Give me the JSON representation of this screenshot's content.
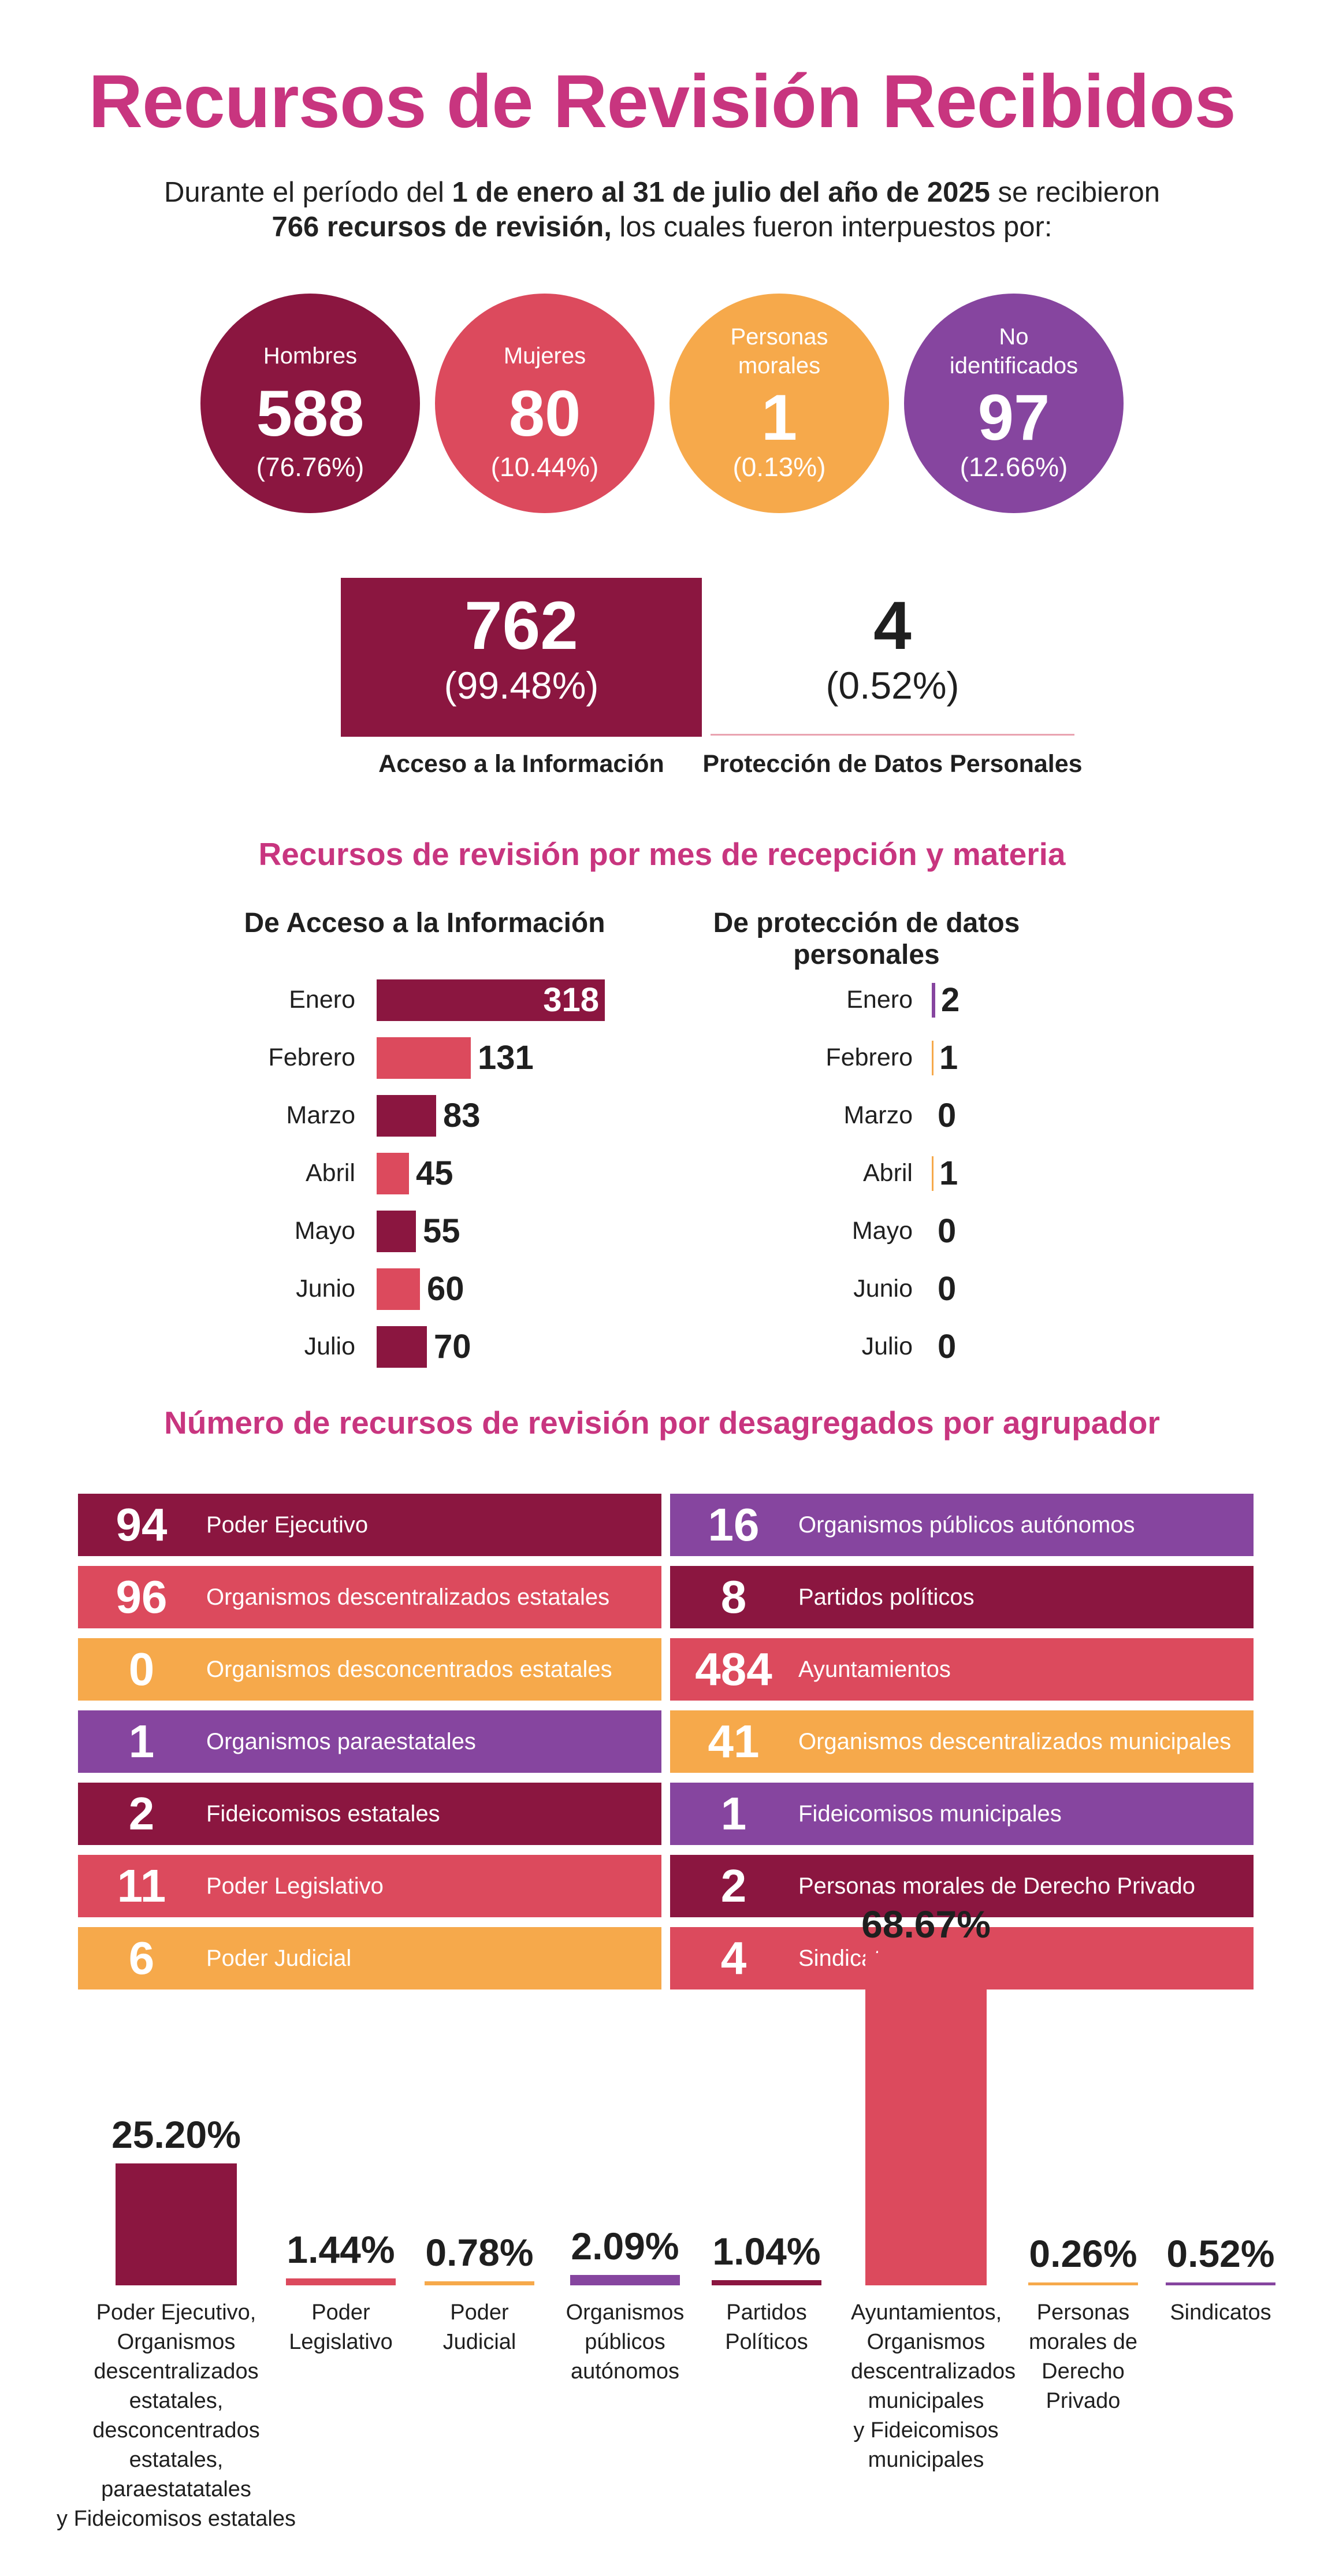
{
  "title": "Recursos de Revisión Recibidos",
  "intro": {
    "l1_a": "Durante el período del ",
    "l1_b": "1 de enero al 31 de julio del año de 2025",
    "l1_c": " se recibieron",
    "l2_a": "766 recursos de revisión,",
    "l2_b": " los cuales fueron interpuestos por:"
  },
  "circles": [
    {
      "label": "Hombres",
      "value": "588",
      "percent": "(76.76%)",
      "color": "#8b1640"
    },
    {
      "label": "Mujeres",
      "value": "80",
      "percent": "(10.44%)",
      "color": "#dc4a5d"
    },
    {
      "label": "Personas morales",
      "value": "1",
      "percent": "(0.13%)",
      "color": "#f6a94b"
    },
    {
      "label": "No identificados",
      "value": "97",
      "percent": "(12.66%)",
      "color": "#86459f"
    }
  ],
  "materia": [
    {
      "value": "762",
      "percent": "(99.48%)",
      "label": "Acceso a la Información"
    },
    {
      "value": "4",
      "percent": "(0.52%)",
      "label": "Protección de Datos Personales"
    }
  ],
  "section_month": "Recursos de revisión por mes de recepción y materia",
  "section_agrupador": "Número de recursos de revisión por desagregados por agrupador",
  "chart_data": [
    {
      "type": "bar",
      "title": "De Acceso a la Información",
      "categories": [
        "Enero",
        "Febrero",
        "Marzo",
        "Abril",
        "Mayo",
        "Junio",
        "Julio"
      ],
      "values": [
        318,
        131,
        83,
        45,
        55,
        60,
        70
      ],
      "colors": [
        "#8b1640",
        "#dc4a5d",
        "#8b1640",
        "#dc4a5d",
        "#8b1640",
        "#dc4a5d",
        "#8b1640"
      ]
    },
    {
      "type": "bar",
      "title": "De protección de datos personales",
      "categories": [
        "Enero",
        "Febrero",
        "Marzo",
        "Abril",
        "Mayo",
        "Junio",
        "Julio"
      ],
      "values": [
        2,
        1,
        0,
        1,
        0,
        0,
        0
      ],
      "colors": [
        "#86459f",
        "#f6a94b",
        "#f6a94b",
        "#f6a94b",
        "#f6a94b",
        "#f6a94b",
        "#f6a94b"
      ]
    },
    {
      "type": "table",
      "title": "Número de recursos de revisión por desagregados por agrupador",
      "rows": [
        {
          "value": "94",
          "label": "Poder Ejecutivo",
          "color": "#8b1640"
        },
        {
          "value": "96",
          "label": "Organismos descentralizados estatales",
          "color": "#dc4a5d"
        },
        {
          "value": "0",
          "label": "Organismos desconcentrados estatales",
          "color": "#f6a94b"
        },
        {
          "value": "1",
          "label": "Organismos paraestatales",
          "color": "#86459f"
        },
        {
          "value": "2",
          "label": "Fideicomisos estatales",
          "color": "#8b1640"
        },
        {
          "value": "11",
          "label": "Poder Legislativo",
          "color": "#dc4a5d"
        },
        {
          "value": "6",
          "label": "Poder Judicial",
          "color": "#f6a94b"
        },
        {
          "value": "16",
          "label": "Organismos públicos autónomos",
          "color": "#86459f"
        },
        {
          "value": "8",
          "label": "Partidos políticos",
          "color": "#8b1640"
        },
        {
          "value": "484",
          "label": "Ayuntamientos",
          "color": "#dc4a5d"
        },
        {
          "value": "41",
          "label": "Organismos descentralizados municipales",
          "color": "#f6a94b"
        },
        {
          "value": "1",
          "label": "Fideicomisos municipales",
          "color": "#86459f"
        },
        {
          "value": "2",
          "label": "Personas morales de Derecho Privado",
          "color": "#8b1640"
        },
        {
          "value": "4",
          "label": "Sindicatos",
          "color": "#dc4a5d"
        }
      ]
    },
    {
      "type": "bar",
      "categories": [
        "Poder Ejecutivo,\nOrganismos\ndescentralizados\nestatales,\ndesconcentrados\nestatales,\nparaestatatales\ny Fideicomisos estatales",
        "Poder\nLegislativo",
        "Poder\nJudicial",
        "Organismos\npúblicos\nautónomos",
        "Partidos\nPolíticos",
        "Ayuntamientos,\nOrganismos\ndescentralizados\nmunicipales\ny Fideicomisos\nmunicipales",
        "Personas\nmorales de\nDerecho\nPrivado",
        "Sindicatos"
      ],
      "values": [
        25.2,
        1.44,
        0.78,
        2.09,
        1.04,
        68.67,
        0.26,
        0.52
      ],
      "value_labels": [
        "25.20%",
        "1.44%",
        "0.78%",
        "2.09%",
        "1.04%",
        "68.67%",
        "0.26%",
        "0.52%"
      ],
      "colors": [
        "#8b1640",
        "#dc4a5d",
        "#f6a94b",
        "#86459f",
        "#8b1640",
        "#dc4a5d",
        "#f6a94b",
        "#86459f"
      ]
    }
  ]
}
